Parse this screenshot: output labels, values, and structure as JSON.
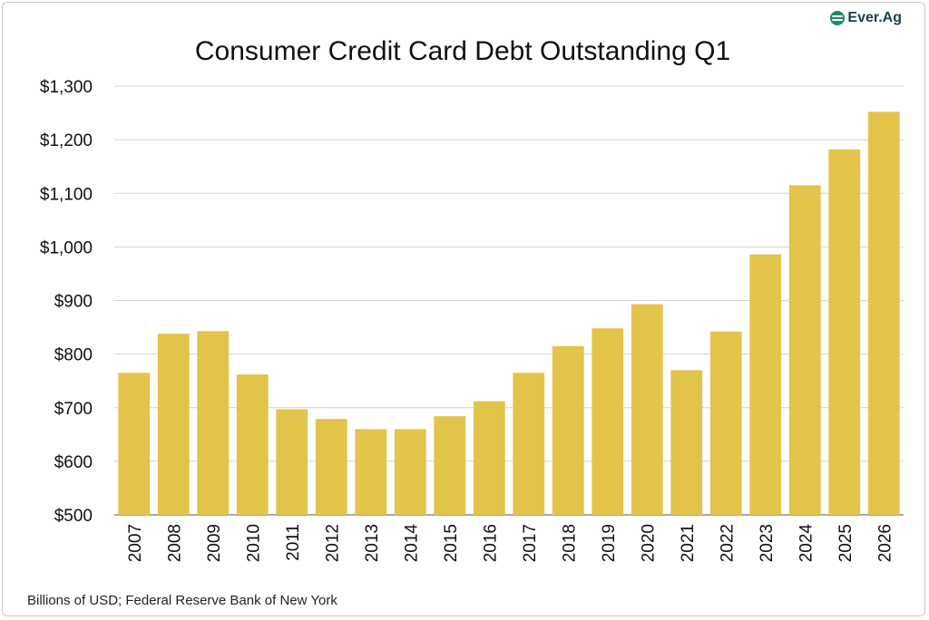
{
  "brand": {
    "logo_text": "Ever.Ag",
    "logo_color": "#1f8a6e"
  },
  "chart_data": {
    "type": "bar",
    "title": "Consumer Credit Card Debt Outstanding Q1",
    "note": "Billions of USD; Federal Reserve Bank of New York",
    "xlabel": "",
    "ylabel": "",
    "categories": [
      "2007",
      "2008",
      "2009",
      "2010",
      "2011",
      "2012",
      "2013",
      "2014",
      "2015",
      "2016",
      "2017",
      "2018",
      "2019",
      "2020",
      "2021",
      "2022",
      "2023",
      "2024",
      "2025",
      "2026"
    ],
    "values": [
      765,
      838,
      843,
      762,
      697,
      679,
      660,
      660,
      684,
      712,
      765,
      815,
      848,
      893,
      770,
      842,
      986,
      1115,
      1182,
      1252
    ],
    "ylim": [
      500,
      1300
    ],
    "yticks": [
      500,
      600,
      700,
      800,
      900,
      1000,
      1100,
      1200,
      1300
    ],
    "ytick_labels": [
      "$500",
      "$600",
      "$700",
      "$800",
      "$900",
      "$1,000",
      "$1,100",
      "$1,200",
      "$1,300"
    ],
    "bar_color": "#e2c44a",
    "grid": true,
    "legend": "none"
  }
}
